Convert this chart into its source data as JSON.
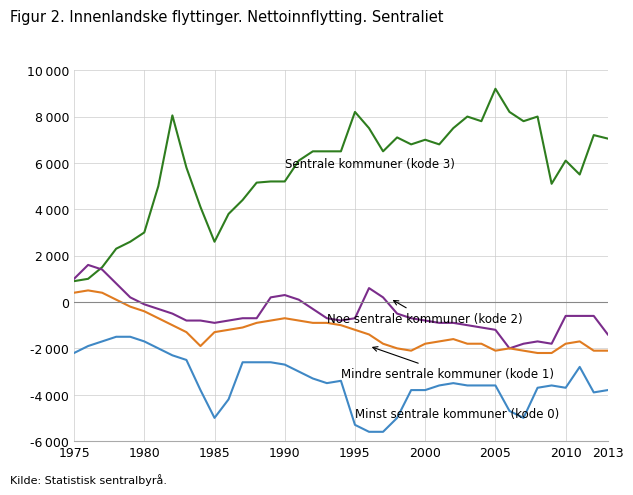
{
  "title": "Figur 2. Innenlandske flyttinger. Nettoinnflytting. Sentraliet",
  "source": "Kilde: Statistisk sentralbyrå.",
  "ylim": [
    -6000,
    10000
  ],
  "yticks": [
    -6000,
    -4000,
    -2000,
    0,
    2000,
    4000,
    6000,
    8000,
    10000
  ],
  "xlim": [
    1975,
    2013
  ],
  "xticks": [
    1975,
    1980,
    1985,
    1990,
    1995,
    2000,
    2005,
    2010,
    2013
  ],
  "series": {
    "kode3": {
      "label": "Sentrale kommuner (kode 3)",
      "color": "#2e7d1e",
      "data": {
        "years": [
          1975,
          1976,
          1977,
          1978,
          1979,
          1980,
          1981,
          1982,
          1983,
          1984,
          1985,
          1986,
          1987,
          1988,
          1989,
          1990,
          1991,
          1992,
          1993,
          1994,
          1995,
          1996,
          1997,
          1998,
          1999,
          2000,
          2001,
          2002,
          2003,
          2004,
          2005,
          2006,
          2007,
          2008,
          2009,
          2010,
          2011,
          2012,
          2013
        ],
        "values": [
          900,
          1000,
          1500,
          2300,
          2600,
          3000,
          5000,
          8050,
          5800,
          4100,
          2600,
          3800,
          4400,
          5150,
          5200,
          5200,
          6100,
          6500,
          6500,
          6500,
          8200,
          7500,
          6500,
          7100,
          6800,
          7000,
          6800,
          7500,
          8000,
          7800,
          9200,
          8200,
          7800,
          8000,
          5100,
          6100,
          5500,
          7200,
          7050
        ]
      }
    },
    "kode2": {
      "label": "Noe sentrale kommuner (kode 2)",
      "color": "#7b2d8b",
      "data": {
        "years": [
          1975,
          1976,
          1977,
          1978,
          1979,
          1980,
          1981,
          1982,
          1983,
          1984,
          1985,
          1986,
          1987,
          1988,
          1989,
          1990,
          1991,
          1992,
          1993,
          1994,
          1995,
          1996,
          1997,
          1998,
          1999,
          2000,
          2001,
          2002,
          2003,
          2004,
          2005,
          2006,
          2007,
          2008,
          2009,
          2010,
          2011,
          2012,
          2013
        ],
        "values": [
          1000,
          1600,
          1400,
          800,
          200,
          -100,
          -300,
          -500,
          -800,
          -800,
          -900,
          -800,
          -700,
          -700,
          200,
          300,
          100,
          -300,
          -700,
          -800,
          -700,
          600,
          200,
          -500,
          -700,
          -800,
          -900,
          -900,
          -1000,
          -1100,
          -1200,
          -2000,
          -1800,
          -1700,
          -1800,
          -600,
          -600,
          -600,
          -1400
        ]
      }
    },
    "kode1": {
      "label": "Mindre sentrale kommuner (kode 1)",
      "color": "#e07b20",
      "data": {
        "years": [
          1975,
          1976,
          1977,
          1978,
          1979,
          1980,
          1981,
          1982,
          1983,
          1984,
          1985,
          1986,
          1987,
          1988,
          1989,
          1990,
          1991,
          1992,
          1993,
          1994,
          1995,
          1996,
          1997,
          1998,
          1999,
          2000,
          2001,
          2002,
          2003,
          2004,
          2005,
          2006,
          2007,
          2008,
          2009,
          2010,
          2011,
          2012,
          2013
        ],
        "values": [
          400,
          500,
          400,
          100,
          -200,
          -400,
          -700,
          -1000,
          -1300,
          -1900,
          -1300,
          -1200,
          -1100,
          -900,
          -800,
          -700,
          -800,
          -900,
          -900,
          -1000,
          -1200,
          -1400,
          -1800,
          -2000,
          -2100,
          -1800,
          -1700,
          -1600,
          -1800,
          -1800,
          -2100,
          -2000,
          -2100,
          -2200,
          -2200,
          -1800,
          -1700,
          -2100,
          -2100
        ]
      }
    },
    "kode0": {
      "label": "Minst sentrale kommuner (kode 0)",
      "color": "#3f88c5",
      "data": {
        "years": [
          1975,
          1976,
          1977,
          1978,
          1979,
          1980,
          1981,
          1982,
          1983,
          1984,
          1985,
          1986,
          1987,
          1988,
          1989,
          1990,
          1991,
          1992,
          1993,
          1994,
          1995,
          1996,
          1997,
          1998,
          1999,
          2000,
          2001,
          2002,
          2003,
          2004,
          2005,
          2006,
          2007,
          2008,
          2009,
          2010,
          2011,
          2012,
          2013
        ],
        "values": [
          -2200,
          -1900,
          -1700,
          -1500,
          -1500,
          -1700,
          -2000,
          -2300,
          -2500,
          -3800,
          -5000,
          -4200,
          -2600,
          -2600,
          -2600,
          -2700,
          -3000,
          -3300,
          -3500,
          -3400,
          -5300,
          -5600,
          -5600,
          -5000,
          -3800,
          -3800,
          -3600,
          -3500,
          -3600,
          -3600,
          -3600,
          -4700,
          -5000,
          -3700,
          -3600,
          -3700,
          -2800,
          -3900,
          -3800
        ]
      }
    }
  }
}
